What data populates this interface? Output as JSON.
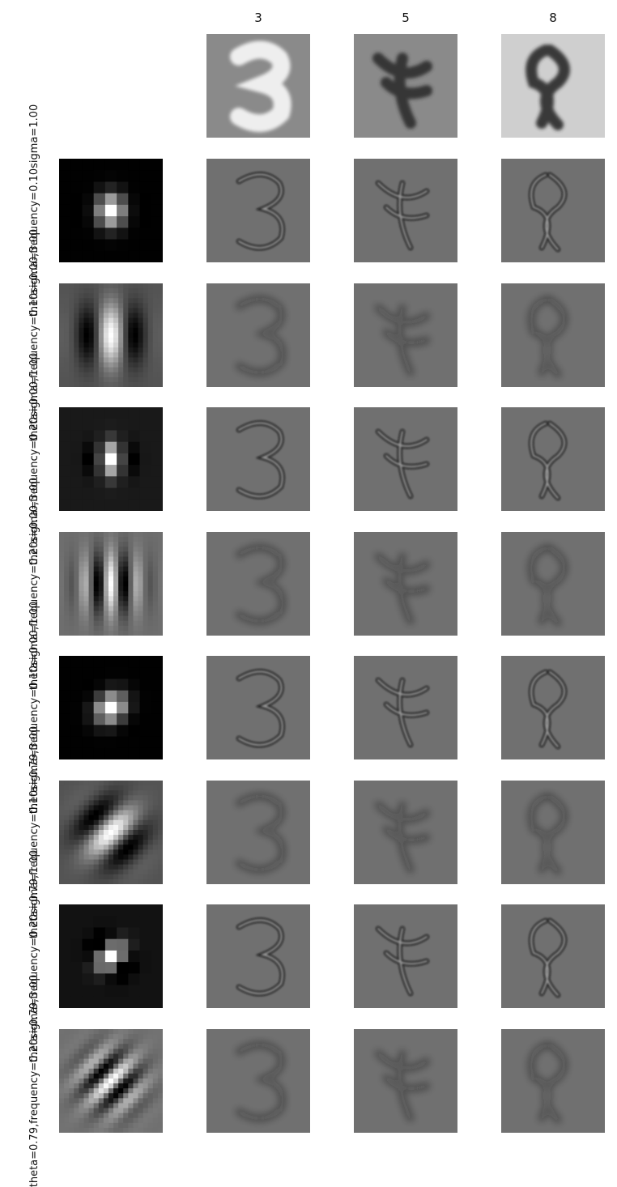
{
  "columns": [
    "3",
    "5",
    "8"
  ],
  "rows": [
    {
      "label": [
        "theta=0.00,",
        "frequency=0.10",
        "sigma=1.00"
      ],
      "theta": 0.0,
      "frequency": 0.1,
      "sigma": 1.0
    },
    {
      "label": [
        "theta=0.00,",
        "frequency=0.10",
        "sigma=3.00"
      ],
      "theta": 0.0,
      "frequency": 0.1,
      "sigma": 3.0
    },
    {
      "label": [
        "theta=0.00,",
        "frequency=0.20",
        "sigma=1.00"
      ],
      "theta": 0.0,
      "frequency": 0.2,
      "sigma": 1.0
    },
    {
      "label": [
        "theta=0.00,",
        "frequency=0.20",
        "sigma=3.00"
      ],
      "theta": 0.0,
      "frequency": 0.2,
      "sigma": 3.0
    },
    {
      "label": [
        "theta=0.79,",
        "frequency=0.10",
        "sigma=1.00"
      ],
      "theta": 0.79,
      "frequency": 0.1,
      "sigma": 1.0
    },
    {
      "label": [
        "theta=0.79,",
        "frequency=0.10",
        "sigma=3.00"
      ],
      "theta": 0.79,
      "frequency": 0.1,
      "sigma": 3.0
    },
    {
      "label": [
        "theta=0.79,",
        "frequency=0.20",
        "sigma=1.00"
      ],
      "theta": 0.79,
      "frequency": 0.2,
      "sigma": 1.0
    },
    {
      "label": [
        "theta=0.79,",
        "frequency=0.20",
        "sigma=3.00"
      ],
      "theta": 0.79,
      "frequency": 0.2,
      "sigma": 3.0
    }
  ]
}
